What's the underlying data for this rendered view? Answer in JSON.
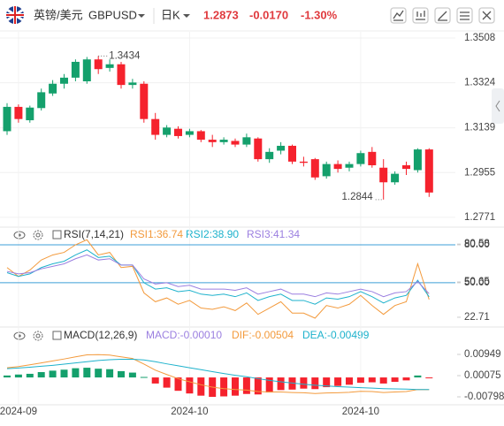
{
  "header": {
    "name": "英镑/美元",
    "symbol": "GBPUSD",
    "period": "日K",
    "price": "1.2873",
    "change": "-0.0170",
    "change_pct": "-1.30%"
  },
  "chart_data": [
    {
      "type": "candlestick",
      "categories": [
        null,
        "2024-09",
        null,
        null,
        null,
        null,
        null,
        null,
        null,
        null,
        null,
        null,
        null,
        null,
        null,
        null,
        "2024-10",
        null,
        null,
        null,
        null,
        null,
        null,
        null,
        null,
        null,
        null,
        null,
        null,
        null,
        null,
        "2024-10",
        null,
        null,
        null,
        null,
        null,
        null
      ],
      "open": [
        1.3125,
        1.3225,
        1.317,
        1.322,
        1.328,
        1.332,
        1.3345,
        1.333,
        1.342,
        1.3385,
        1.34,
        1.3315,
        1.332,
        1.3175,
        1.311,
        1.3135,
        1.311,
        1.3125,
        1.309,
        1.308,
        1.3085,
        1.307,
        1.3095,
        1.301,
        1.3045,
        1.3065,
        1.3,
        1.301,
        1.294,
        1.299,
        1.2975,
        1.299,
        1.304,
        1.2975,
        1.2915,
        1.2985,
        1.2965,
        1.305
      ],
      "high": [
        1.324,
        1.3235,
        1.323,
        1.33,
        1.3335,
        1.336,
        1.342,
        1.343,
        1.3434,
        1.342,
        1.341,
        1.334,
        1.333,
        1.32,
        1.315,
        1.3145,
        1.3135,
        1.313,
        1.311,
        1.31,
        1.3095,
        1.3115,
        1.31,
        1.3055,
        1.308,
        1.307,
        1.302,
        1.3015,
        1.3,
        1.3005,
        1.3,
        1.3045,
        1.306,
        1.301,
        1.296,
        1.3,
        1.3055,
        1.3055
      ],
      "low": [
        1.311,
        1.316,
        1.316,
        1.321,
        1.327,
        1.33,
        1.333,
        1.332,
        1.336,
        1.337,
        1.33,
        1.33,
        1.316,
        1.309,
        1.31,
        1.3095,
        1.31,
        1.308,
        1.306,
        1.307,
        1.306,
        1.306,
        1.3,
        1.2995,
        1.303,
        1.299,
        1.298,
        1.2925,
        1.293,
        1.2955,
        1.296,
        1.298,
        1.2975,
        1.2844,
        1.2905,
        1.2945,
        1.2955,
        1.2855
      ],
      "close": [
        1.3225,
        1.3175,
        1.3222,
        1.3285,
        1.332,
        1.3345,
        1.341,
        1.342,
        1.338,
        1.34,
        1.3315,
        1.3325,
        1.3175,
        1.311,
        1.314,
        1.3105,
        1.3125,
        1.309,
        1.308,
        1.309,
        1.307,
        1.31,
        1.301,
        1.304,
        1.3065,
        1.3,
        1.2995,
        1.2935,
        1.299,
        1.297,
        1.299,
        1.3035,
        1.2985,
        1.2915,
        1.295,
        1.297,
        1.305,
        1.2873
      ],
      "up_color": "#14a06c",
      "down_color": "#f5222d",
      "ylim": [
        1.2738,
        1.3537
      ],
      "yticks": [
        1.3508,
        1.3324,
        1.3139,
        1.2955,
        1.2771
      ],
      "annotations": [
        {
          "index": 8,
          "value": 1.3434
        },
        {
          "index": 33,
          "value": 1.2844
        }
      ]
    },
    {
      "type": "line",
      "title": "RSI(7,14,21)",
      "series": [
        {
          "name": "RSI1:36.74",
          "color": "#f39a3c",
          "values": [
            62,
            55,
            60,
            68,
            72,
            74,
            80,
            84,
            72,
            74,
            62,
            63,
            42,
            35,
            38,
            33,
            36,
            30,
            29,
            31,
            28,
            34,
            25,
            30,
            35,
            26,
            26,
            22,
            32,
            30,
            33,
            40,
            32,
            25,
            32,
            35,
            65,
            36.74
          ]
        },
        {
          "name": "RSI2:38.90",
          "color": "#1eb2cc",
          "values": [
            58,
            55,
            57,
            62,
            65,
            67,
            72,
            76,
            70,
            71,
            64,
            64,
            50,
            45,
            46,
            43,
            44,
            41,
            40,
            41,
            39,
            42,
            36,
            39,
            41,
            36,
            36,
            33,
            38,
            37,
            39,
            43,
            39,
            34,
            38,
            40,
            52,
            38.9
          ]
        },
        {
          "name": "RSI3:41.34",
          "color": "#9b7fe0",
          "values": [
            59,
            57,
            58,
            61,
            63,
            65,
            69,
            72,
            68,
            69,
            64,
            64,
            53,
            49,
            50,
            47,
            48,
            45,
            45,
            45,
            44,
            46,
            41,
            43,
            45,
            41,
            41,
            39,
            42,
            41,
            43,
            45,
            43,
            39,
            42,
            43,
            51,
            41.34
          ]
        }
      ],
      "hlines": [
        80,
        50
      ],
      "hline_color": "#3d9fd8",
      "ylim": [
        13.6,
        84.9
      ],
      "yticks": [
        {
          "value": 80,
          "label": "80.00"
        },
        80.58,
        50.65,
        {
          "value": 50,
          "label": "50.00"
        },
        22.71
      ]
    },
    {
      "type": "macd",
      "title": "MACD(12,26,9)",
      "histogram": {
        "name": "MACD:-0.00010",
        "color": "#9b7fe0",
        "up_color": "#14a06c",
        "down_color": "#f5222d",
        "values": [
          0.0008,
          0.0012,
          0.0015,
          0.0022,
          0.0028,
          0.0032,
          0.0038,
          0.004,
          0.0036,
          0.0034,
          0.0026,
          0.002,
          0.0002,
          -0.0025,
          -0.0042,
          -0.0055,
          -0.0066,
          -0.0075,
          -0.008,
          -0.0078,
          -0.0075,
          -0.0068,
          -0.007,
          -0.0062,
          -0.0052,
          -0.005,
          -0.0046,
          -0.0048,
          -0.004,
          -0.0035,
          -0.003,
          -0.0022,
          -0.002,
          -0.0025,
          -0.0018,
          -0.0012,
          0.0008,
          -0.0001
        ]
      },
      "series": [
        {
          "name": "DIF:-0.00504",
          "color": "#f39a3c",
          "values": [
            0.004,
            0.0045,
            0.0052,
            0.006,
            0.0068,
            0.0076,
            0.0085,
            0.0093,
            0.0094,
            0.0092,
            0.0085,
            0.0078,
            0.0055,
            0.003,
            0.0012,
            -0.0005,
            -0.0018,
            -0.003,
            -0.004,
            -0.0046,
            -0.005,
            -0.0052,
            -0.0058,
            -0.006,
            -0.006,
            -0.0062,
            -0.0063,
            -0.0066,
            -0.0064,
            -0.0063,
            -0.0061,
            -0.0057,
            -0.0058,
            -0.0062,
            -0.006,
            -0.0058,
            -0.005,
            -0.00504
          ]
        },
        {
          "name": "DEA:-0.00499",
          "color": "#1eb2cc",
          "values": [
            0.0036,
            0.0039,
            0.0042,
            0.0046,
            0.005,
            0.0055,
            0.006,
            0.0065,
            0.007,
            0.0073,
            0.0075,
            0.0075,
            0.0072,
            0.0065,
            0.0056,
            0.0048,
            0.004,
            0.0032,
            0.0024,
            0.0016,
            0.0009,
            0.0003,
            -0.0005,
            -0.0012,
            -0.0018,
            -0.0023,
            -0.0028,
            -0.0032,
            -0.0035,
            -0.0038,
            -0.004,
            -0.0042,
            -0.0044,
            -0.0046,
            -0.0047,
            -0.0048,
            -0.005,
            -0.00499
          ]
        }
      ],
      "ylim": [
        -0.01126,
        0.01422
      ],
      "yticks": [
        0.00949,
        0.00075,
        -0.00798
      ]
    }
  ]
}
